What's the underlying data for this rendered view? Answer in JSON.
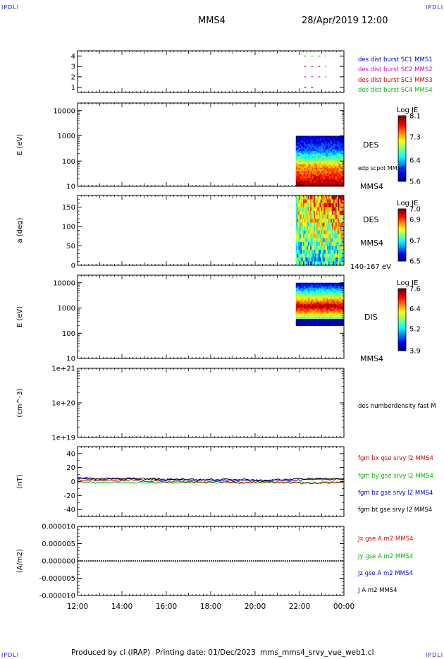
{
  "header": {
    "corner_tl": "IPDLI",
    "corner_tr": "IPDLI",
    "corner_bl": "IPDLI",
    "corner_br": "IPDLI",
    "spacecraft": "MMS4",
    "datetime": "28/Apr/2019 12:00"
  },
  "footer": {
    "produced_by": "Produced by cl (IRAP)",
    "printing_date": "Printing date: 01/Dec/2023",
    "filename": "mms_mms4_srvy_vue_web1.cl"
  },
  "colors": {
    "mms1": "#0000cc",
    "mms2": "#d000d0",
    "mms3": "#dd0000",
    "mms4": "#00bb00",
    "bx": "#dd0000",
    "by": "#00bb00",
    "bz": "#0000dd",
    "bt": "#000000"
  },
  "chart_data": [
    {
      "type": "scatter",
      "panel": "burst-availability",
      "ylim": [
        0.5,
        4.5
      ],
      "yticks": [
        "1",
        "2",
        "3",
        "4"
      ],
      "x_ticks": [
        "12:00",
        "14:00",
        "16:00",
        "18:00",
        "20:00",
        "22:00",
        "00:00"
      ],
      "series": [
        {
          "name": "des dist burst SC1 MMS1",
          "y": 1,
          "x": [
            "22:12",
            "22:48"
          ],
          "color_key": "mms1"
        },
        {
          "name": "des dist burst SC2 MMS2",
          "y": 2,
          "x": [
            "22:12",
            "23:12"
          ],
          "color_key": "mms2"
        },
        {
          "name": "des dist burst SC3 MMS3",
          "y": 3,
          "x": [
            "22:12",
            "23:12"
          ],
          "color_key": "mms3"
        },
        {
          "name": "des dist burst SC4 MMS4",
          "y": 4,
          "x": [
            "22:12",
            "23:12"
          ],
          "color_key": "mms4"
        }
      ]
    },
    {
      "type": "heatmap",
      "panel": "des-energy",
      "ylabel": "E (eV)",
      "yscale": "log",
      "ylim": [
        10,
        20000
      ],
      "yticks": [
        "10",
        "100",
        "1000",
        "10000"
      ],
      "data_x_range": [
        "21:50",
        "00:00"
      ],
      "data_y_range": [
        10,
        1000
      ],
      "colorbar": {
        "label": "Log JE",
        "ticks": [
          "5.6",
          "6.4",
          "7.3",
          "8.1"
        ],
        "range": [
          5.6,
          8.1
        ]
      },
      "labels": [
        "DES",
        "edp scpot MMS4",
        "MMS4"
      ]
    },
    {
      "type": "heatmap",
      "panel": "des-pitch-angle",
      "ylabel": "a (deg)",
      "ylim": [
        0,
        180
      ],
      "yticks": [
        "0",
        "50",
        "100",
        "150"
      ],
      "data_x_range": [
        "21:50",
        "00:00"
      ],
      "colorbar": {
        "label": "Log JE",
        "ticks": [
          "6.5",
          "6.7",
          "6.9",
          "7.0"
        ],
        "range": [
          6.5,
          7.0
        ]
      },
      "labels": [
        "DES",
        "MMS4",
        "140-167 eV"
      ]
    },
    {
      "type": "heatmap",
      "panel": "dis-energy",
      "ylabel": "E (eV)",
      "yscale": "log",
      "ylim": [
        10,
        20000
      ],
      "yticks": [
        "10",
        "100",
        "1000",
        "10000"
      ],
      "data_x_range": [
        "21:50",
        "00:00"
      ],
      "data_y_range": [
        200,
        10000
      ],
      "colorbar": {
        "label": "Log JE",
        "ticks": [
          "3.9",
          "5.2",
          "6.4",
          "7.6"
        ],
        "range": [
          3.9,
          7.6
        ]
      },
      "labels": [
        "DIS",
        "MMS4"
      ]
    },
    {
      "type": "line",
      "panel": "density",
      "ylabel": "(cm^-3)",
      "yscale": "log",
      "ylim": [
        1e+19,
        1e+21
      ],
      "yticks": [
        "1e+19",
        "1e+20",
        "1e+21"
      ],
      "series": [
        {
          "name": "des numberdensity fast M",
          "values": []
        }
      ]
    },
    {
      "type": "line",
      "panel": "fgm",
      "ylabel": "(nT)",
      "ylim": [
        -50,
        50
      ],
      "yticks": [
        "-40",
        "-20",
        "0",
        "20",
        "40"
      ],
      "x_hours": [
        0,
        0.5,
        1,
        1.5,
        2,
        2.5,
        3,
        3.5,
        4,
        4.5,
        5,
        5.5,
        6,
        6.5,
        7,
        7.5,
        8,
        8.5,
        9,
        9.5,
        10,
        10.5,
        11,
        11.5,
        12
      ],
      "series": [
        {
          "name": "fgm bx gse srvy l2 MMS4",
          "color_key": "bx",
          "values": [
            2,
            2,
            1,
            2,
            1,
            2,
            0,
            1,
            0,
            1,
            0,
            0,
            -1,
            0,
            -1,
            -1,
            -1,
            0,
            -1,
            -2,
            -2,
            -3,
            -2,
            -2,
            -1
          ]
        },
        {
          "name": "fgm by gse srvy l2 MMS4",
          "color_key": "by",
          "values": [
            -1,
            -1,
            -2,
            -1,
            -1,
            -2,
            -1,
            -2,
            -1,
            -2,
            -1,
            -1,
            -2,
            -1,
            -2,
            -2,
            -1,
            -2,
            -1,
            -1,
            -1,
            -2,
            -1,
            -1,
            -2
          ]
        },
        {
          "name": "fgm bz gse srvy l2 MMS4",
          "color_key": "bz",
          "values": [
            4,
            4,
            3,
            4,
            3,
            4,
            3,
            3,
            2,
            3,
            2,
            2,
            2,
            2,
            1,
            2,
            1,
            1,
            2,
            2,
            2,
            3,
            3,
            3,
            3
          ]
        },
        {
          "name": "fgm bt gse srvy l2 MMS4",
          "color_key": "bt",
          "values": [
            5,
            5,
            4,
            5,
            4,
            5,
            4,
            4,
            3,
            4,
            3,
            3,
            3,
            3,
            3,
            3,
            2,
            2,
            3,
            3,
            4,
            4,
            4,
            4,
            4
          ]
        }
      ]
    },
    {
      "type": "line",
      "panel": "current",
      "ylabel": "(A/m2)",
      "ylim": [
        -1e-05,
        1e-05
      ],
      "yticks": [
        "-0.000010",
        "-0.000005",
        "0.000000",
        "0.000005",
        "0.000010"
      ],
      "xticks": [
        "12:00",
        "14:00",
        "16:00",
        "18:00",
        "20:00",
        "22:00",
        "00:00"
      ],
      "series": [
        {
          "name": "Jx gse A m2 MMS4",
          "color_key": "bx",
          "values": [
            0,
            0
          ]
        },
        {
          "name": "Jy gse A m2 MMS4",
          "color_key": "by",
          "values": [
            0,
            0
          ]
        },
        {
          "name": "Jz gse A m2 MMS4",
          "color_key": "bz",
          "values": [
            0,
            0
          ]
        },
        {
          "name": "J A m2 MMS4",
          "color_key": "bt",
          "values": [
            0,
            0
          ]
        }
      ]
    }
  ]
}
